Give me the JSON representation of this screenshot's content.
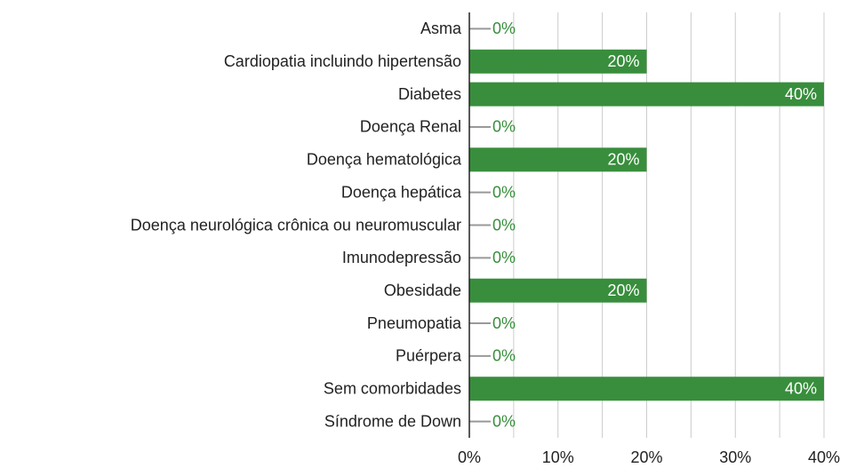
{
  "chart_data": {
    "type": "bar",
    "orientation": "horizontal",
    "categories": [
      "Asma",
      "Cardiopatia incluindo hipertensão",
      "Diabetes",
      "Doença Renal",
      "Doença hematológica",
      "Doença hepática",
      "Doença neurológica crônica ou neuromuscular",
      "Imunodepressão",
      "Obesidade",
      "Pneumopatia",
      "Puérpera",
      "Sem comorbidades",
      "Síndrome de Down"
    ],
    "values": [
      0,
      20,
      40,
      0,
      20,
      0,
      0,
      0,
      20,
      0,
      0,
      40,
      0
    ],
    "value_labels": [
      "0%",
      "20%",
      "40%",
      "0%",
      "20%",
      "0%",
      "0%",
      "0%",
      "20%",
      "0%",
      "0%",
      "40%",
      "0%"
    ],
    "color": "#388e3c",
    "xlim": [
      0,
      40
    ],
    "xticks": [
      {
        "value": 0,
        "label": "0%"
      },
      {
        "value": 10,
        "label": "10%"
      },
      {
        "value": 20,
        "label": "20%"
      },
      {
        "value": 30,
        "label": "30%"
      },
      {
        "value": 40,
        "label": "40%"
      }
    ],
    "minor_xticks": [
      5,
      15,
      25,
      35
    ],
    "grid": true
  }
}
